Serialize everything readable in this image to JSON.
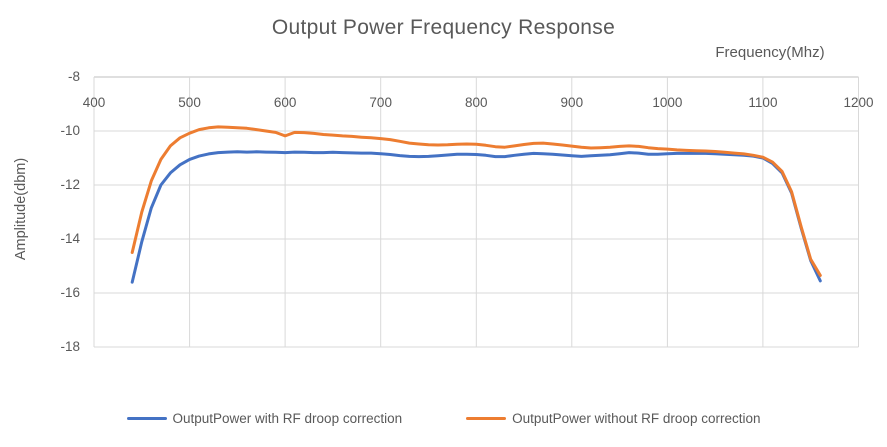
{
  "colors": {
    "series_blue": "#4472C4",
    "series_orange": "#ED7D31",
    "grid": "#D9D9D9",
    "axis_line": "#BFBFBF",
    "text": "#595959"
  },
  "chart_data": {
    "type": "line",
    "title": "Output Power Frequency Response",
    "xlabel": "Frequency(Mhz)",
    "ylabel": "Amplitude(dbm)",
    "xlim": [
      400,
      1200
    ],
    "ylim": [
      -18,
      -8
    ],
    "x_ticks": [
      400,
      500,
      600,
      700,
      800,
      900,
      1000,
      1100,
      1200
    ],
    "y_ticks": [
      -8,
      -10,
      -12,
      -14,
      -16,
      -18
    ],
    "grid": true,
    "legend_position": "bottom",
    "x": [
      440,
      450,
      460,
      470,
      480,
      490,
      500,
      510,
      520,
      530,
      540,
      550,
      560,
      570,
      580,
      590,
      600,
      610,
      620,
      630,
      640,
      650,
      660,
      670,
      680,
      690,
      700,
      710,
      720,
      730,
      740,
      750,
      760,
      770,
      780,
      790,
      800,
      810,
      820,
      830,
      840,
      850,
      860,
      870,
      880,
      890,
      900,
      910,
      920,
      930,
      940,
      950,
      960,
      970,
      980,
      990,
      1000,
      1010,
      1020,
      1030,
      1040,
      1050,
      1060,
      1070,
      1080,
      1090,
      1100,
      1110,
      1120,
      1130,
      1140,
      1150,
      1160
    ],
    "series": [
      {
        "name": "OutputPower with RF droop correction",
        "color": "#4472C4",
        "values": [
          -15.6,
          -14.1,
          -12.85,
          -12.0,
          -11.55,
          -11.25,
          -11.05,
          -10.93,
          -10.85,
          -10.8,
          -10.78,
          -10.77,
          -10.78,
          -10.77,
          -10.78,
          -10.79,
          -10.8,
          -10.78,
          -10.79,
          -10.8,
          -10.8,
          -10.79,
          -10.8,
          -10.81,
          -10.82,
          -10.82,
          -10.84,
          -10.87,
          -10.91,
          -10.94,
          -10.95,
          -10.94,
          -10.92,
          -10.89,
          -10.86,
          -10.86,
          -10.87,
          -10.9,
          -10.95,
          -10.95,
          -10.9,
          -10.86,
          -10.83,
          -10.84,
          -10.86,
          -10.89,
          -10.92,
          -10.94,
          -10.92,
          -10.9,
          -10.88,
          -10.84,
          -10.8,
          -10.82,
          -10.86,
          -10.86,
          -10.84,
          -10.83,
          -10.83,
          -10.83,
          -10.83,
          -10.84,
          -10.86,
          -10.88,
          -10.9,
          -10.93,
          -11.0,
          -11.2,
          -11.55,
          -12.3,
          -13.6,
          -14.8,
          -15.55
        ]
      },
      {
        "name": "OutputPower without RF droop correction",
        "color": "#ED7D31",
        "values": [
          -14.5,
          -13.0,
          -11.85,
          -11.05,
          -10.55,
          -10.25,
          -10.08,
          -9.95,
          -9.88,
          -9.85,
          -9.86,
          -9.88,
          -9.9,
          -9.95,
          -10.0,
          -10.05,
          -10.18,
          -10.05,
          -10.06,
          -10.09,
          -10.13,
          -10.15,
          -10.18,
          -10.2,
          -10.23,
          -10.25,
          -10.28,
          -10.32,
          -10.38,
          -10.45,
          -10.48,
          -10.51,
          -10.52,
          -10.51,
          -10.49,
          -10.48,
          -10.49,
          -10.53,
          -10.58,
          -10.6,
          -10.55,
          -10.5,
          -10.46,
          -10.45,
          -10.48,
          -10.52,
          -10.56,
          -10.6,
          -10.63,
          -10.62,
          -10.6,
          -10.57,
          -10.55,
          -10.57,
          -10.62,
          -10.65,
          -10.67,
          -10.7,
          -10.72,
          -10.73,
          -10.74,
          -10.76,
          -10.79,
          -10.82,
          -10.85,
          -10.9,
          -10.97,
          -11.15,
          -11.5,
          -12.25,
          -13.55,
          -14.75,
          -15.35
        ]
      }
    ]
  }
}
